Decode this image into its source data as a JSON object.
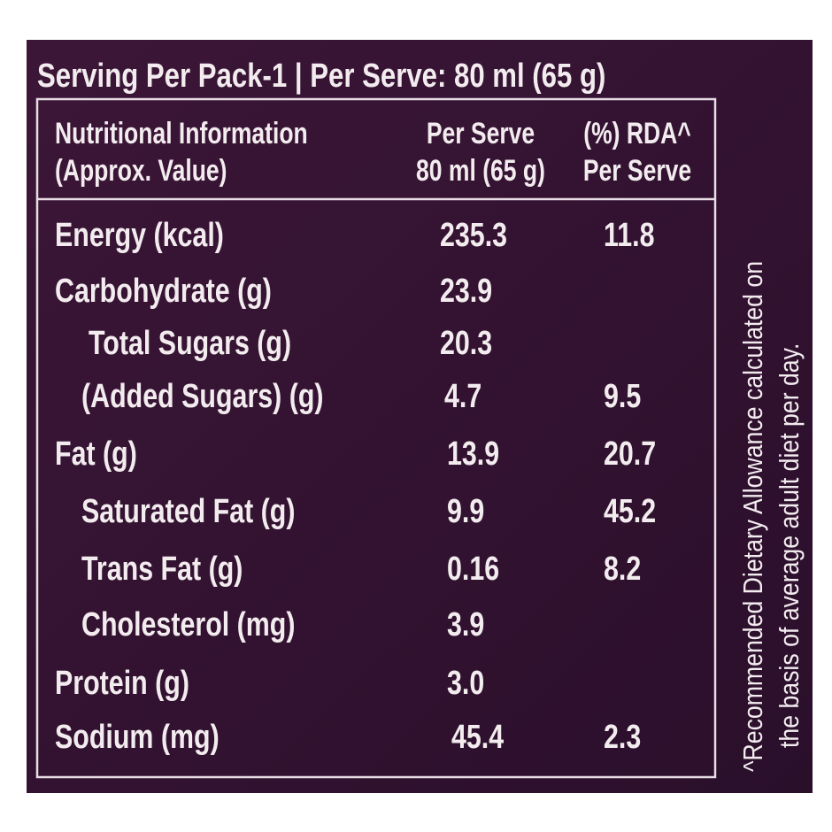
{
  "header": {
    "title": "Serving Per Pack-1 | Per Serve: 80 ml (65 g)"
  },
  "table": {
    "columns": [
      [
        "Nutritional Information",
        "(Approx. Value)"
      ],
      [
        "Per Serve",
        "80 ml (65 g)"
      ],
      [
        "(%) RDA^",
        "Per Serve"
      ]
    ],
    "rows": [
      [
        "Energy (kcal)",
        "235.3",
        "11.8"
      ],
      [
        "Carbohydrate (g)",
        "23.9",
        null
      ],
      [
        "Total Sugars (g)",
        "20.3",
        null
      ],
      [
        "(Added Sugars) (g)",
        "4.7",
        "9.5"
      ],
      [
        "Fat (g)",
        "13.9",
        "20.7"
      ],
      [
        "Saturated Fat (g)",
        "9.9",
        "45.2"
      ],
      [
        "Trans Fat (g)",
        "0.16",
        "8.2"
      ],
      [
        "Cholesterol (mg)",
        "3.9",
        null
      ],
      [
        "Protein (g)",
        "3.0",
        null
      ],
      [
        "Sodium (mg)",
        "45.4",
        "2.3"
      ]
    ]
  },
  "footnote": [
    "^Recommended Dietary Allowance calculated on",
    "the basis of average adult diet per day."
  ]
}
